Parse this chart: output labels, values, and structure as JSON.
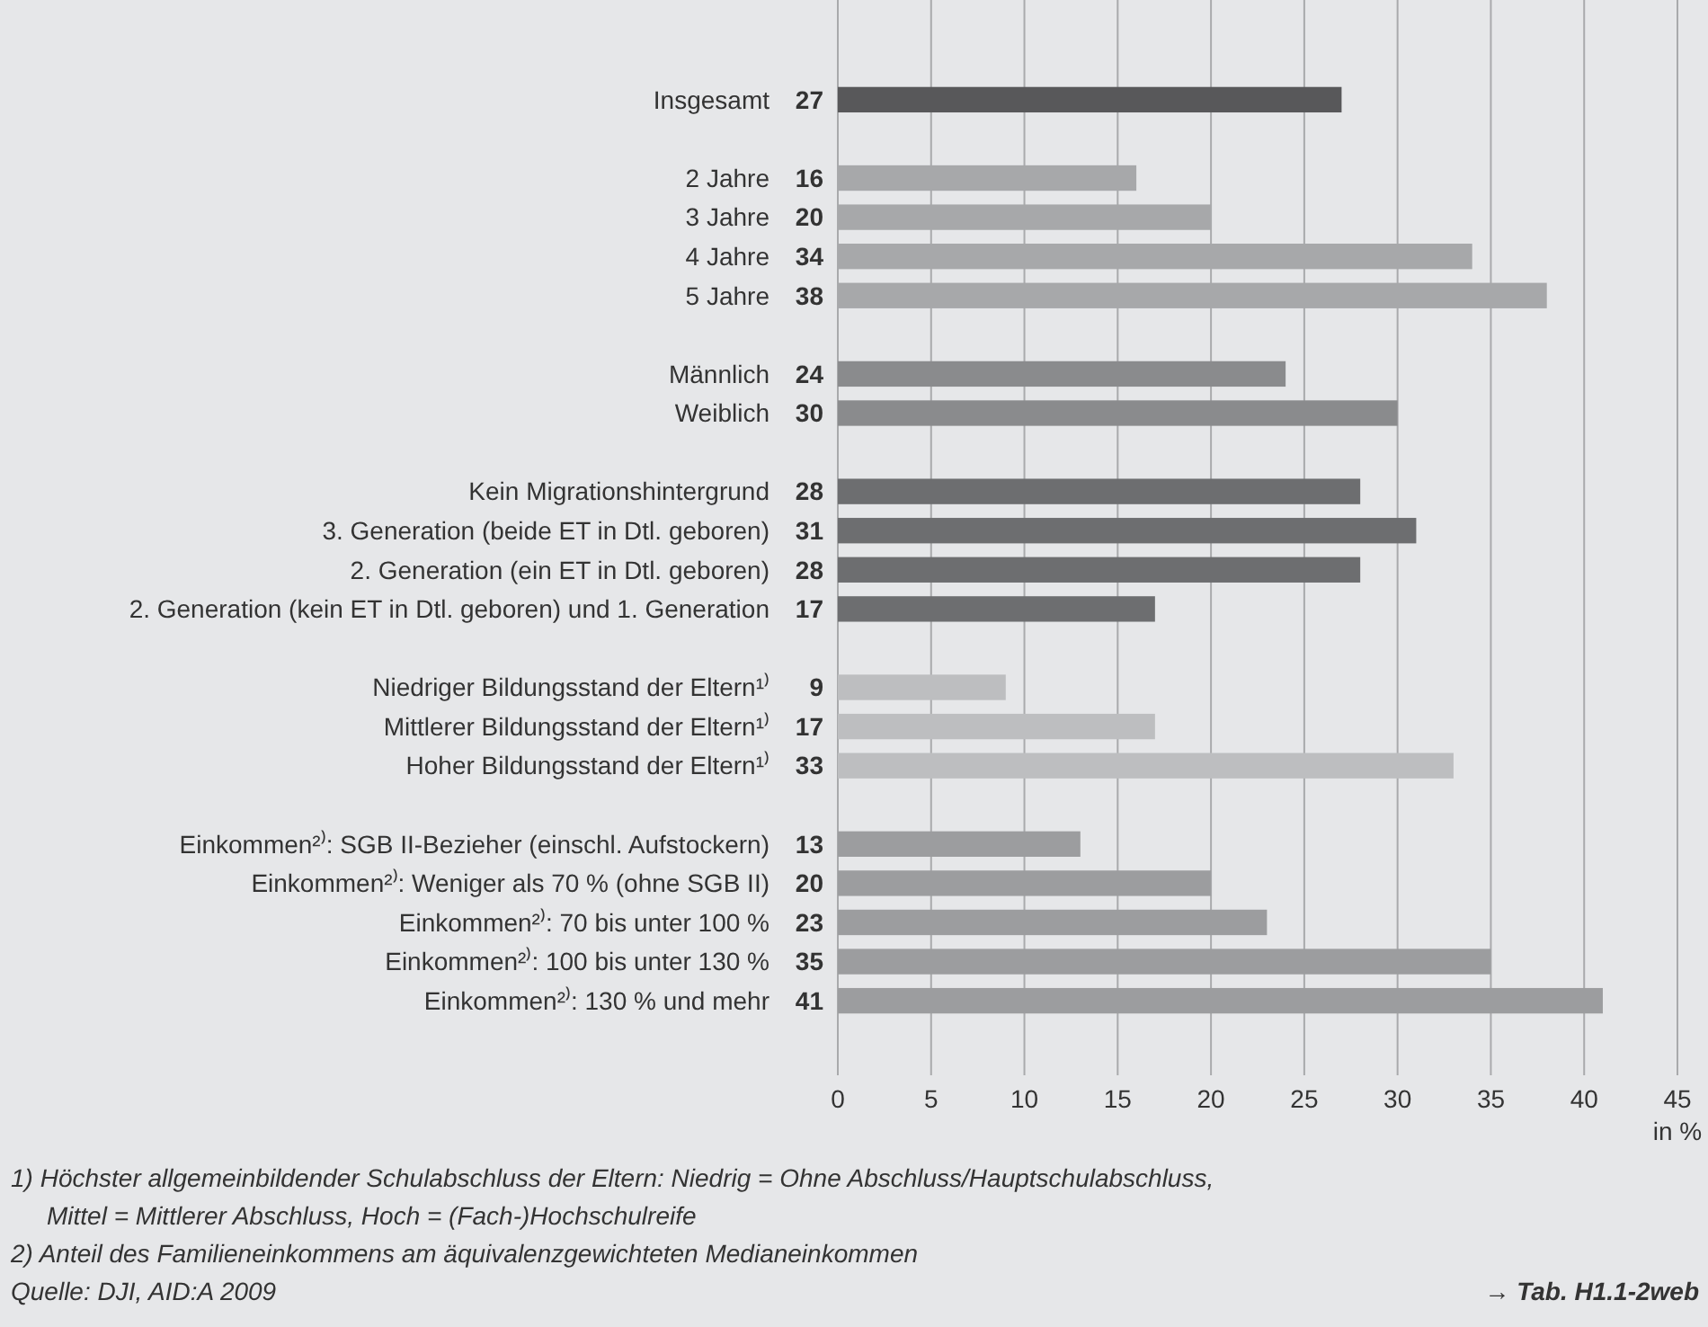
{
  "chart_data": {
    "type": "bar",
    "orientation": "horizontal",
    "xlabel": "in %",
    "categories": [
      "Insgesamt",
      null,
      "2 Jahre",
      "3 Jahre",
      "4 Jahre",
      "5 Jahre",
      null,
      "Männlich",
      "Weiblich",
      null,
      "Kein Migrationshintergrund",
      "3. Generation (beide ET in Dtl. geboren)",
      "2. Generation (ein ET in Dtl. geboren)",
      "2. Generation (kein ET in Dtl. geboren) und 1. Generation",
      null,
      "Niedriger Bildungsstand der Eltern¹⁾",
      "Mittlerer Bildungsstand der Eltern¹⁾",
      "Hoher Bildungsstand der Eltern¹⁾",
      null,
      "Einkommen²⁾: SGB II-Bezieher (einschl. Aufstockern)",
      "Einkommen²⁾: Weniger als 70 % (ohne SGB II)",
      "Einkommen²⁾: 70 bis unter 100 %",
      "Einkommen²⁾: 100 bis unter 130 %",
      "Einkommen²⁾: 130 % und mehr"
    ],
    "values": [
      27,
      null,
      16,
      20,
      34,
      38,
      null,
      24,
      30,
      null,
      28,
      31,
      28,
      17,
      null,
      9,
      17,
      33,
      null,
      13,
      20,
      23,
      35,
      41
    ],
    "colors": [
      "#58585a",
      null,
      "#a7a8aa",
      "#a7a8aa",
      "#a7a8aa",
      "#a7a8aa",
      null,
      "#8a8b8d",
      "#8a8b8d",
      null,
      "#6d6e70",
      "#6d6e70",
      "#6d6e70",
      "#6d6e70",
      null,
      "#bdbec0",
      "#bdbec0",
      "#bdbec0",
      null,
      "#9c9d9f",
      "#9c9d9f",
      "#9c9d9f",
      "#9c9d9f",
      "#9c9d9f"
    ],
    "xlim": [
      0,
      45
    ],
    "xticks": [
      0,
      5,
      10,
      15,
      20,
      25,
      30,
      35,
      40,
      45
    ],
    "grid": "x",
    "data_labels": true,
    "annotations": [
      "1) Höchster allgemeinbildender Schulabschluss der Eltern: Niedrig = Ohne Abschluss/Hauptschulabschluss, Mittel = Mittlerer Abschluss, Hoch = (Fach-)Hochschulreife",
      "2) Anteil des Familieneinkommens am äquivalenzgewichteten Medianeinkommen",
      "Quelle: DJI, AID:A 2009",
      "→ Tab. H1.1-2web"
    ]
  }
}
